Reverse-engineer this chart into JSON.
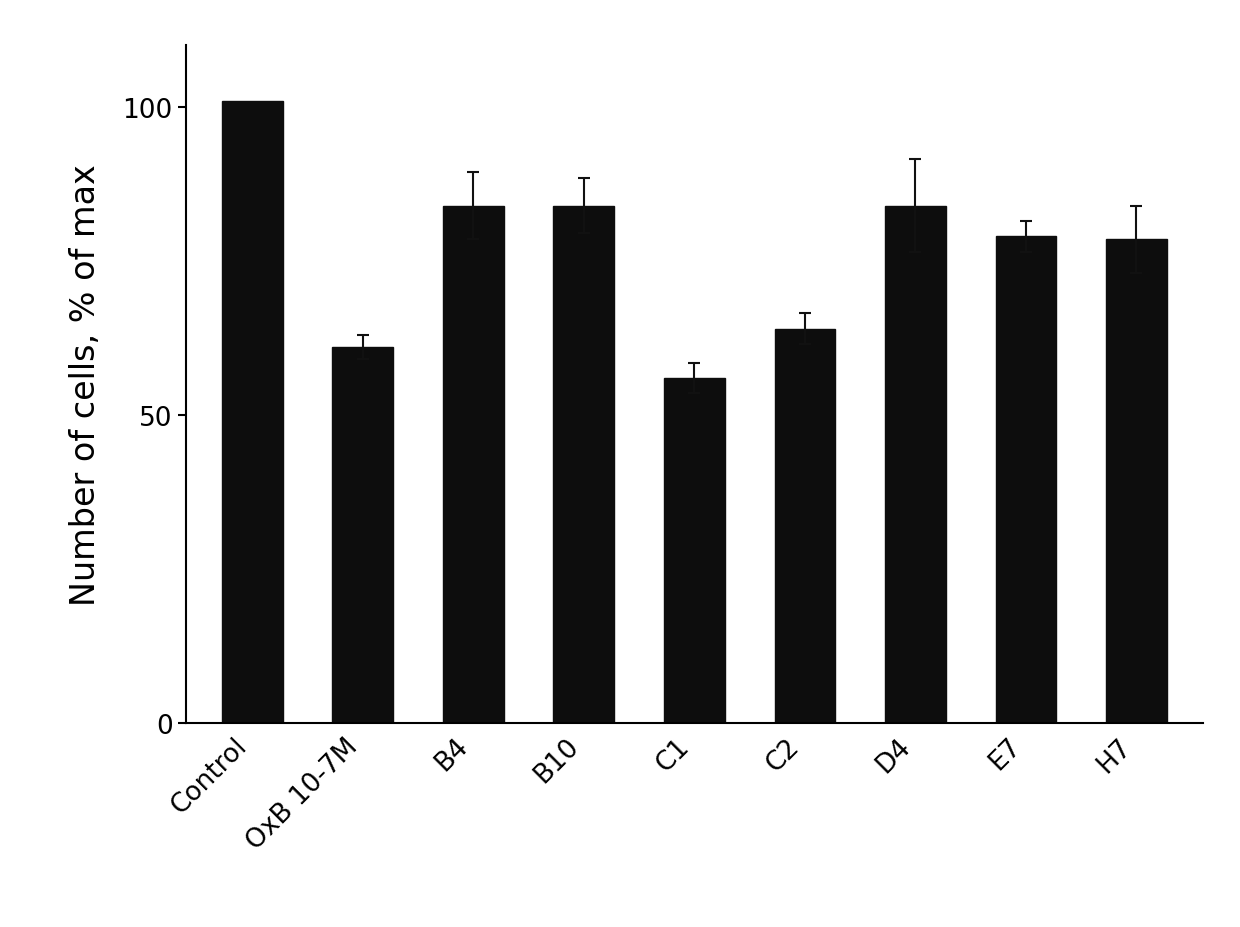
{
  "categories": [
    "Control",
    "OxB 10-7M",
    "B4",
    "B10",
    "C1",
    "C2",
    "D4",
    "E7",
    "H7"
  ],
  "values": [
    101.0,
    61.0,
    84.0,
    84.0,
    56.0,
    64.0,
    84.0,
    79.0,
    78.5
  ],
  "errors": [
    0.0,
    2.0,
    5.5,
    4.5,
    2.5,
    2.5,
    7.5,
    2.5,
    5.5
  ],
  "bar_color": "#0d0d0d",
  "error_color": "#111111",
  "ylabel": "Number of cells, % of max",
  "ylim": [
    0,
    110
  ],
  "yticks": [
    0,
    50,
    100
  ],
  "background_color": "#ffffff",
  "bar_width": 0.55,
  "capsize": 4,
  "ylabel_fontsize": 24,
  "tick_fontsize": 19,
  "xtick_rotation": 45,
  "figsize": [
    12.4,
    9.28
  ],
  "dpi": 100
}
